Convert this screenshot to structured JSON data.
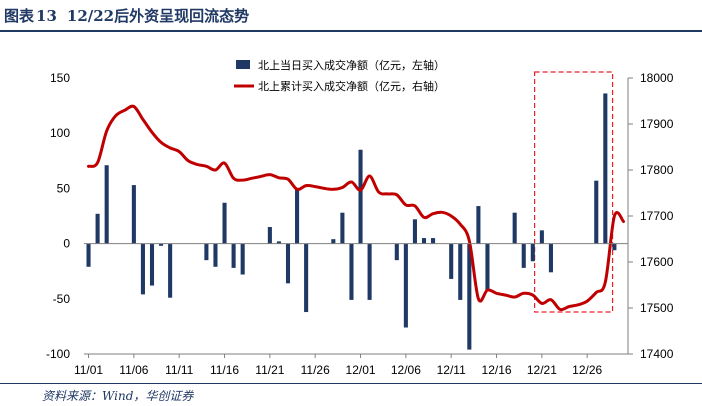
{
  "figure": {
    "label": "图表",
    "number": "13",
    "title": "12/22后外资呈现回流态势",
    "source": "资料来源：Wind，华创证券"
  },
  "colors": {
    "title": "#1f3864",
    "bar": "#1f3864",
    "line": "#c00000",
    "highlight_box": "#e8202a"
  },
  "chart_data": {
    "type": "bar+line",
    "x_tick_labels": [
      "11/01",
      "11/06",
      "11/11",
      "11/16",
      "11/21",
      "11/26",
      "12/01",
      "12/06",
      "12/11",
      "12/16",
      "12/21",
      "12/26"
    ],
    "dates": [
      "11/01",
      "11/02",
      "11/03",
      "11/04",
      "11/05",
      "11/06",
      "11/07",
      "11/08",
      "11/09",
      "11/10",
      "11/11",
      "11/12",
      "11/13",
      "11/14",
      "11/15",
      "11/16",
      "11/17",
      "11/18",
      "11/19",
      "11/20",
      "11/21",
      "11/22",
      "11/23",
      "11/24",
      "11/25",
      "11/26",
      "11/27",
      "11/28",
      "11/29",
      "11/30",
      "12/01",
      "12/02",
      "12/03",
      "12/04",
      "12/05",
      "12/06",
      "12/07",
      "12/08",
      "12/09",
      "12/10",
      "12/11",
      "12/12",
      "12/13",
      "12/14",
      "12/15",
      "12/16",
      "12/17",
      "12/18",
      "12/19",
      "12/20",
      "12/21",
      "12/22",
      "12/23",
      "12/24",
      "12/25",
      "12/26",
      "12/27",
      "12/28",
      "12/29",
      "12/30"
    ],
    "series": [
      {
        "name": "北上当日买入成交净额（亿元，左轴）",
        "type": "bar",
        "axis": "left",
        "values": [
          -21,
          27,
          71,
          null,
          null,
          53,
          -46,
          -38,
          -2,
          -49,
          null,
          null,
          null,
          -15,
          -21,
          37,
          -22,
          -28,
          null,
          null,
          15,
          2,
          -36,
          49,
          -62,
          null,
          null,
          4,
          28,
          -51,
          85,
          -51,
          null,
          null,
          -15,
          -76,
          22,
          5,
          5,
          null,
          -32,
          -51,
          -96,
          34,
          -42,
          null,
          null,
          28,
          -22,
          -16,
          12,
          -26,
          null,
          null,
          null,
          null,
          57,
          136,
          -6,
          null
        ]
      },
      {
        "name": "北上累计买入成交净额（亿元，右轴）",
        "type": "line",
        "axis": "right",
        "values": [
          17808,
          17816,
          17885,
          17918,
          17930,
          17938,
          17910,
          17882,
          17860,
          17848,
          17840,
          17820,
          17812,
          17808,
          17800,
          17815,
          17782,
          17778,
          17782,
          17786,
          17790,
          17783,
          17780,
          17758,
          17766,
          17764,
          17760,
          17758,
          17762,
          17774,
          17756,
          17787,
          17752,
          17748,
          17746,
          17724,
          17722,
          17697,
          17705,
          17708,
          17700,
          17682,
          17646,
          17520,
          17539,
          17532,
          17528,
          17524,
          17532,
          17528,
          17510,
          17518,
          17497,
          17503,
          17507,
          17515,
          17534,
          17556,
          17700,
          17688
        ]
      }
    ],
    "y_left": {
      "ticks": [
        "-100",
        "-50",
        "0",
        "50",
        "100",
        "150"
      ],
      "min": -100,
      "max": 150
    },
    "y_right": {
      "ticks": [
        "17400",
        "17500",
        "17600",
        "17700",
        "17800",
        "17900",
        "18000"
      ],
      "min": 17400,
      "max": 18000
    },
    "highlight_range": [
      "12/21",
      "12/28"
    ],
    "legend_position": "top"
  }
}
